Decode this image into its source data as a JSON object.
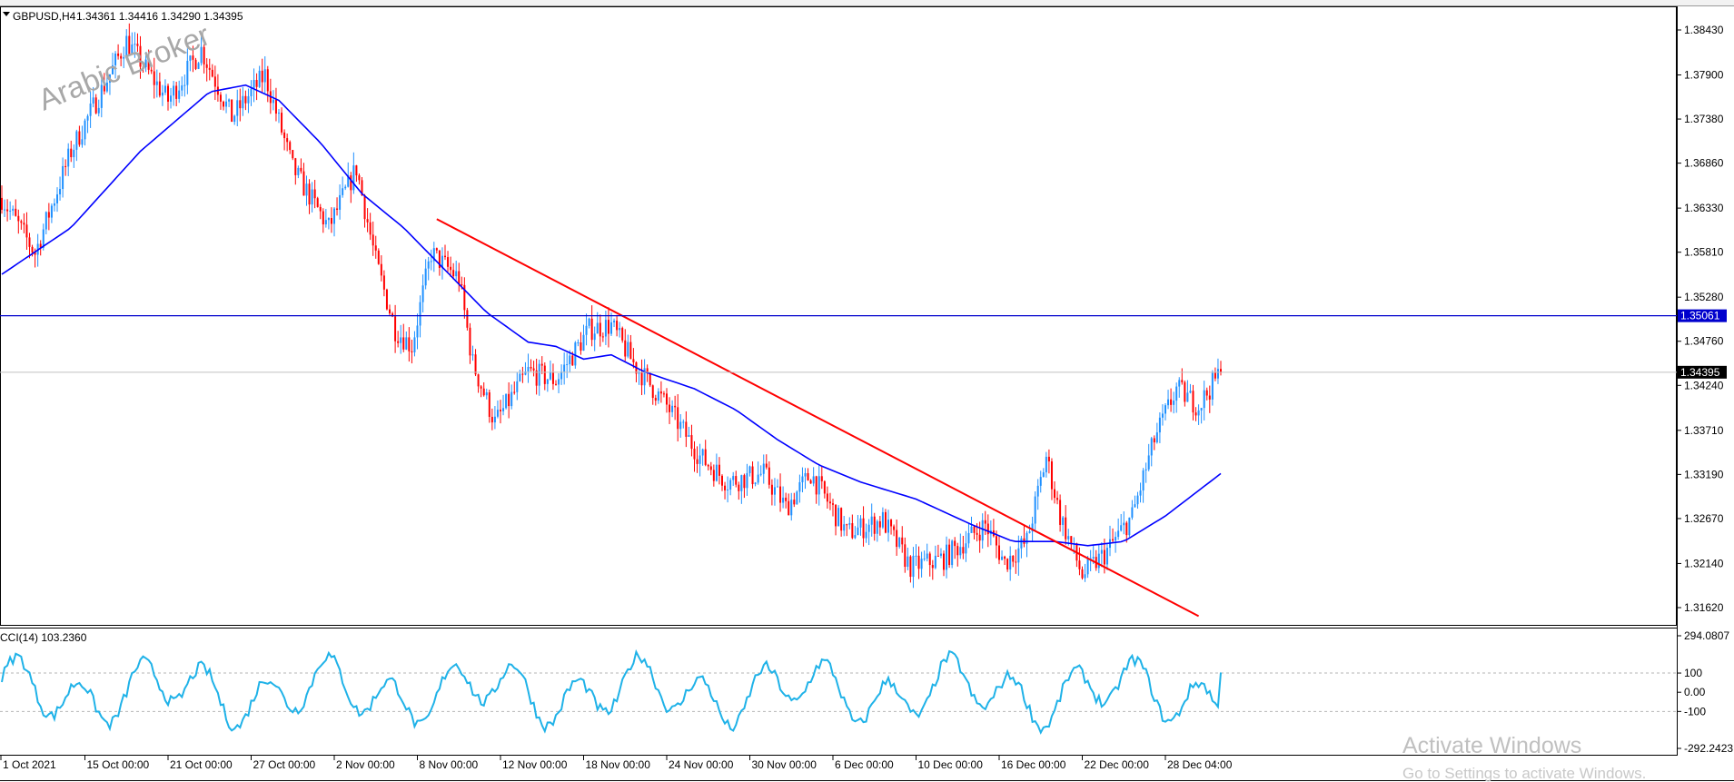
{
  "header": {
    "symbol": "GBPUSD,H4",
    "ohlc": "1.34361 1.34416 1.34290 1.34395"
  },
  "watermarks": {
    "brand": "Arabic Broker",
    "activate_title": "Activate Windows",
    "activate_sub": "Go to Settings to activate Windows."
  },
  "colors": {
    "bull": "#1e90ff",
    "bear": "#ff0000",
    "ma": "#0000ff",
    "trendline": "#ff0000",
    "hline": "#0000cd",
    "cci": "#1fb2e8",
    "grid": "#b5b5b5",
    "axis": "#000000"
  },
  "chart_data": [
    {
      "type": "candlestick",
      "timeframe": "H4",
      "yticks": [
        "1.38430",
        "1.37900",
        "1.37380",
        "1.36860",
        "1.36330",
        "1.35810",
        "1.35280",
        "1.34760",
        "1.34240",
        "1.33710",
        "1.33190",
        "1.32670",
        "1.32140",
        "1.31620"
      ],
      "ylim": [
        1.313,
        1.388
      ],
      "xticks": [
        "1 Oct 2021",
        "15 Oct 00:00",
        "21 Oct 00:00",
        "27 Oct 00:00",
        "2 Nov 00:00",
        "8 Nov 00:00",
        "12 Nov 00:00",
        "18 Nov 00:00",
        "24 Nov 00:00",
        "30 Nov 00:00",
        "6 Dec 00:00",
        "10 Dec 00:00",
        "16 Dec 00:00",
        "22 Dec 00:00",
        "28 Dec 04:00"
      ],
      "last_close": 1.34395,
      "last_price_label": "1.34395",
      "horizontal_level": 1.35061,
      "horizontal_level_label": "1.35061",
      "path_anchors": [
        [
          0,
          1.3645
        ],
        [
          12,
          1.358
        ],
        [
          25,
          1.37
        ],
        [
          45,
          1.383
        ],
        [
          60,
          1.376
        ],
        [
          72,
          1.382
        ],
        [
          83,
          1.374
        ],
        [
          95,
          1.379
        ],
        [
          105,
          1.368
        ],
        [
          118,
          1.361
        ],
        [
          128,
          1.368
        ],
        [
          135,
          1.357
        ],
        [
          142,
          1.349
        ],
        [
          148,
          1.347
        ],
        [
          155,
          1.358
        ],
        [
          165,
          1.355
        ],
        [
          170,
          1.345
        ],
        [
          178,
          1.338
        ],
        [
          190,
          1.344
        ],
        [
          200,
          1.343
        ],
        [
          212,
          1.349
        ],
        [
          220,
          1.3495
        ],
        [
          228,
          1.345
        ],
        [
          240,
          1.34
        ],
        [
          252,
          1.334
        ],
        [
          262,
          1.331
        ],
        [
          275,
          1.332
        ],
        [
          283,
          1.328
        ],
        [
          292,
          1.332
        ],
        [
          305,
          1.325
        ],
        [
          318,
          1.3265
        ],
        [
          328,
          1.321
        ],
        [
          340,
          1.322
        ],
        [
          355,
          1.326
        ],
        [
          362,
          1.3215
        ],
        [
          370,
          1.324
        ],
        [
          377,
          1.334
        ],
        [
          382,
          1.327
        ],
        [
          390,
          1.32
        ],
        [
          398,
          1.3225
        ],
        [
          408,
          1.327
        ],
        [
          416,
          1.336
        ],
        [
          424,
          1.342
        ],
        [
          432,
          1.34
        ],
        [
          440,
          1.344
        ]
      ],
      "ma": [
        [
          0,
          1.3555
        ],
        [
          25,
          1.361
        ],
        [
          50,
          1.37
        ],
        [
          75,
          1.377
        ],
        [
          88,
          1.3778
        ],
        [
          100,
          1.376
        ],
        [
          115,
          1.371
        ],
        [
          130,
          1.365
        ],
        [
          145,
          1.361
        ],
        [
          160,
          1.356
        ],
        [
          175,
          1.351
        ],
        [
          190,
          1.3475
        ],
        [
          200,
          1.347
        ],
        [
          210,
          1.3455
        ],
        [
          220,
          1.346
        ],
        [
          232,
          1.344
        ],
        [
          250,
          1.342
        ],
        [
          265,
          1.3395
        ],
        [
          280,
          1.336
        ],
        [
          295,
          1.333
        ],
        [
          310,
          1.331
        ],
        [
          330,
          1.329
        ],
        [
          350,
          1.326
        ],
        [
          365,
          1.324
        ],
        [
          380,
          1.324
        ],
        [
          392,
          1.3235
        ],
        [
          405,
          1.324
        ],
        [
          420,
          1.327
        ],
        [
          432,
          1.33
        ],
        [
          440,
          1.332
        ]
      ],
      "trendline": [
        [
          157,
          1.362
        ],
        [
          432,
          1.3152
        ]
      ]
    },
    {
      "type": "line",
      "title": "CCI(14) 103.2360",
      "yticks": [
        "294.0807",
        "100",
        "0.00",
        "-100",
        "-292.2423"
      ],
      "ylim": [
        -292.2423,
        294.0807
      ],
      "levels": [
        100,
        -100
      ],
      "last_value": 103.236
    }
  ]
}
